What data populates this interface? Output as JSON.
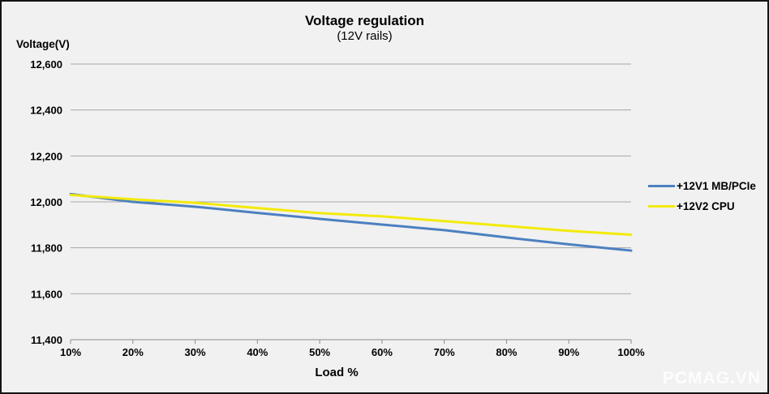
{
  "chart_data": {
    "type": "line",
    "title": "Voltage regulation",
    "subtitle": "(12V rails)",
    "xlabel": "Load %",
    "ylabel": "Voltage(V)",
    "x_values": [
      10,
      20,
      30,
      40,
      50,
      60,
      70,
      80,
      90,
      100
    ],
    "x_tick_labels": [
      "10%",
      "20%",
      "30%",
      "40%",
      "50%",
      "60%",
      "70%",
      "80%",
      "90%",
      "100%"
    ],
    "y_axis": {
      "min": 11400,
      "max": 12600,
      "step": 200,
      "tick_values": [
        11400,
        11600,
        11800,
        12000,
        12200,
        12400,
        12600
      ],
      "tick_labels": [
        "11,400",
        "11,600",
        "11,800",
        "12,000",
        "12,200",
        "12,400",
        "12,600"
      ]
    },
    "series": [
      {
        "name": "+12V1 MB/PCIe",
        "color": "#4c80c0",
        "values": [
          12034,
          12000,
          11979,
          11952,
          11926,
          11901,
          11877,
          11845,
          11815,
          11788
        ]
      },
      {
        "name": "+12V2 CPU",
        "color": "#f2ea0a",
        "values": [
          12030,
          12011,
          11996,
          11973,
          11951,
          11937,
          11916,
          11895,
          11874,
          11857
        ]
      }
    ],
    "legend_position": "right",
    "grid": true,
    "colors": {
      "background": "#f1f1f1",
      "gridline": "#a6a6a6",
      "axis": "#8a8a8a",
      "text": "#000000",
      "border": "#141414"
    }
  },
  "watermark": "PCMAG.VN"
}
